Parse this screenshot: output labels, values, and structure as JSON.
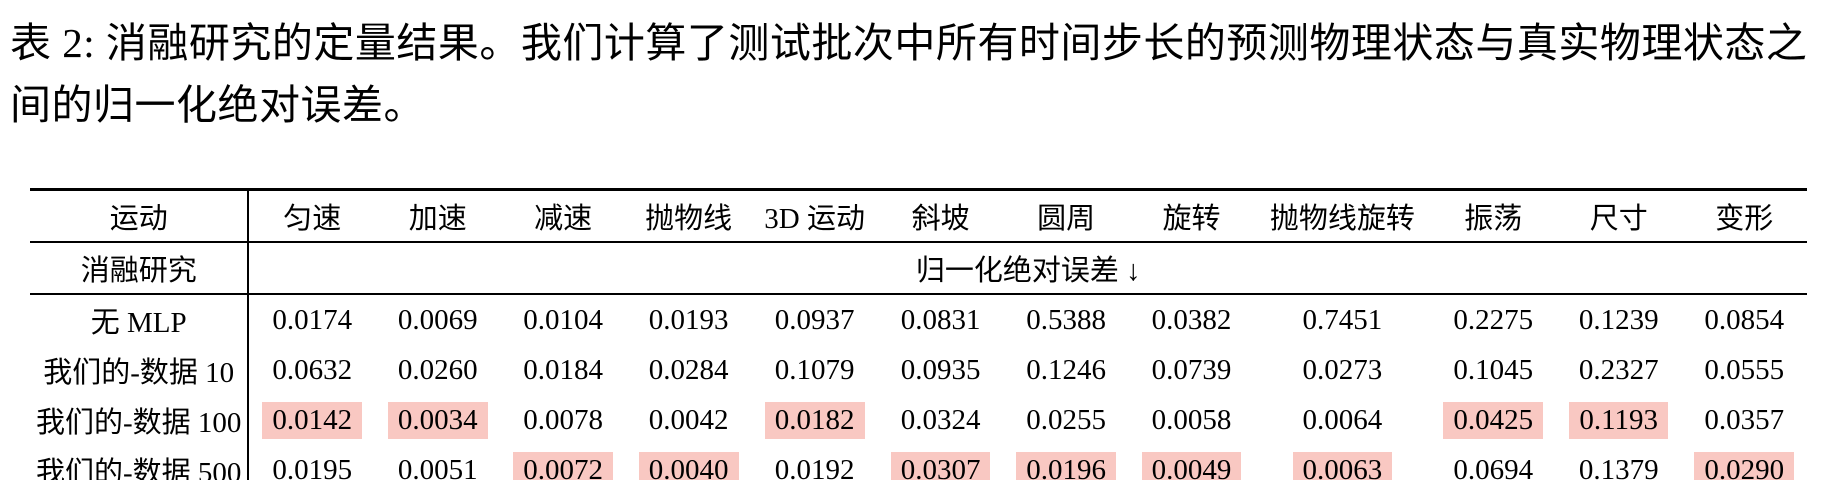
{
  "page": {
    "background": "#ffffff",
    "highlight_color": "#f9c8c2"
  },
  "caption": {
    "text": "表 2: 消融研究的定量结果。我们计算了测试批次中所有时间步长的预测物理状态与真实物理状态之间的归一化绝对误差。"
  },
  "table": {
    "corner_header": "运动",
    "col_headers": [
      "匀速",
      "加速",
      "减速",
      "抛物线",
      "3D 运动",
      "斜坡",
      "圆周",
      "旋转",
      "抛物线旋转",
      "振荡",
      "尺寸",
      "变形"
    ],
    "subheader": {
      "label": "消融研究",
      "span_label": "归一化绝对误差 ↓"
    },
    "rows": [
      {
        "label": "无 MLP",
        "values": [
          "0.0174",
          "0.0069",
          "0.0104",
          "0.0193",
          "0.0937",
          "0.0831",
          "0.5388",
          "0.0382",
          "0.7451",
          "0.2275",
          "0.1239",
          "0.0854"
        ],
        "highlight": []
      },
      {
        "label": "我们的-数据 10",
        "values": [
          "0.0632",
          "0.0260",
          "0.0184",
          "0.0284",
          "0.1079",
          "0.0935",
          "0.1246",
          "0.0739",
          "0.0273",
          "0.1045",
          "0.2327",
          "0.0555"
        ],
        "highlight": []
      },
      {
        "label": "我们的-数据 100",
        "values": [
          "0.0142",
          "0.0034",
          "0.0078",
          "0.0042",
          "0.0182",
          "0.0324",
          "0.0255",
          "0.0058",
          "0.0064",
          "0.0425",
          "0.1193",
          "0.0357"
        ],
        "highlight": [
          0,
          1,
          4,
          9,
          10
        ]
      },
      {
        "label": "我们的-数据 500",
        "values": [
          "0.0195",
          "0.0051",
          "0.0072",
          "0.0040",
          "0.0192",
          "0.0307",
          "0.0196",
          "0.0049",
          "0.0063",
          "0.0694",
          "0.1379",
          "0.0290"
        ],
        "highlight": [
          2,
          3,
          5,
          6,
          7,
          8,
          11
        ]
      }
    ]
  }
}
